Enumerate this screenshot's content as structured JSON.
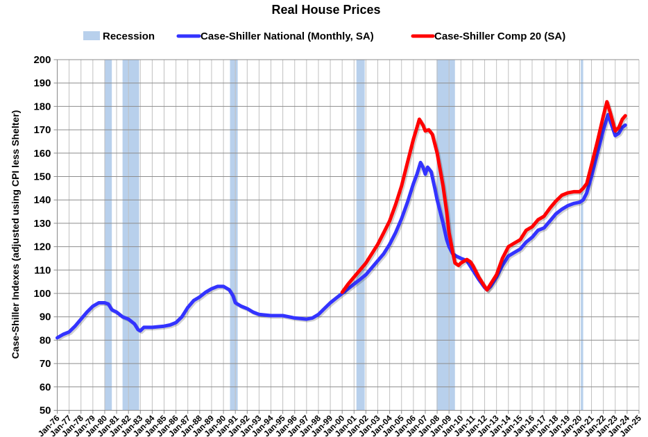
{
  "chart_data": {
    "type": "line",
    "title": "Real House Prices",
    "ylabel": "Case-Shiller Indexes (adjusted using CPI less Shelter)",
    "xlabel": "",
    "ylim": [
      50,
      200
    ],
    "yticks": [
      50,
      60,
      70,
      80,
      90,
      100,
      110,
      120,
      130,
      140,
      150,
      160,
      170,
      180,
      190,
      200
    ],
    "xlim": [
      1976,
      2025
    ],
    "xtick_labels": [
      "Jan-76",
      "Jan-77",
      "Jan-78",
      "Jan-79",
      "Jan-80",
      "Jan-81",
      "Jan-82",
      "Jan-83",
      "Jan-84",
      "Jan-85",
      "Jan-86",
      "Jan-87",
      "Jan-88",
      "Jan-89",
      "Jan-90",
      "Jan-91",
      "Jan-92",
      "Jan-93",
      "Jan-94",
      "Jan-95",
      "Jan-96",
      "Jan-97",
      "Jan-98",
      "Jan-99",
      "Jan-00",
      "Jan-01",
      "Jan-02",
      "Jan-03",
      "Jan-04",
      "Jan-05",
      "Jan-06",
      "Jan-07",
      "Jan-08",
      "Jan-09",
      "Jan-10",
      "Jan-11",
      "Jan-12",
      "Jan-13",
      "Jan-14",
      "Jan-15",
      "Jan-16",
      "Jan-17",
      "Jan-18",
      "Jan-19",
      "Jan-20",
      "Jan-21",
      "Jan-22",
      "Jan-23",
      "Jan-24",
      "Jan-25"
    ],
    "grid": true,
    "legend_position": "top",
    "legend": [
      "Recession",
      "Case-Shiller National (Monthly, SA)",
      "Case-Shiller Comp 20  (SA)"
    ],
    "recessions": [
      [
        1980.0,
        1980.6
      ],
      [
        1981.5,
        1982.9
      ],
      [
        1990.55,
        1991.2
      ],
      [
        2001.2,
        2001.9
      ],
      [
        2007.95,
        2009.5
      ],
      [
        2020.1,
        2020.3
      ]
    ],
    "recession_color": "#b8d0ec",
    "series": [
      {
        "name": "Case-Shiller National (Monthly, SA)",
        "color": "#3333ff",
        "x": [
          1976.0,
          1976.5,
          1977.0,
          1977.5,
          1978.0,
          1978.5,
          1979.0,
          1979.5,
          1980.0,
          1980.3,
          1980.6,
          1981.0,
          1981.5,
          1982.0,
          1982.5,
          1982.8,
          1983.0,
          1983.3,
          1984.0,
          1985.0,
          1985.5,
          1986.0,
          1986.5,
          1987.0,
          1987.5,
          1988.0,
          1988.5,
          1989.0,
          1989.5,
          1990.0,
          1990.5,
          1990.8,
          1991.0,
          1991.5,
          1992.0,
          1992.5,
          1993.0,
          1994.0,
          1995.0,
          1995.5,
          1996.0,
          1997.0,
          1997.5,
          1998.0,
          1998.5,
          1999.0,
          1999.5,
          2000.0,
          2000.5,
          2001.0,
          2001.5,
          2002.0,
          2002.5,
          2003.0,
          2003.5,
          2004.0,
          2004.5,
          2005.0,
          2005.5,
          2006.0,
          2006.3,
          2006.6,
          2006.8,
          2007.0,
          2007.2,
          2007.5,
          2007.8,
          2008.0,
          2008.5,
          2008.8,
          2009.0,
          2009.3,
          2009.6,
          2010.0,
          2010.5,
          2011.0,
          2011.5,
          2012.0,
          2012.2,
          2012.5,
          2013.0,
          2013.5,
          2014.0,
          2014.5,
          2015.0,
          2015.5,
          2016.0,
          2016.5,
          2017.0,
          2017.5,
          2018.0,
          2018.5,
          2019.0,
          2019.5,
          2020.0,
          2020.3,
          2020.6,
          2021.0,
          2021.5,
          2022.0,
          2022.4,
          2022.7,
          2023.0,
          2023.3,
          2023.6,
          2023.85
        ],
        "y": [
          81,
          82.5,
          83.5,
          86,
          89,
          92,
          94.5,
          96,
          96,
          95.5,
          93,
          92,
          90,
          89,
          87,
          84.5,
          84,
          85.5,
          85.5,
          86,
          86.5,
          87.5,
          90,
          94,
          97,
          98.5,
          100.5,
          102,
          103,
          103,
          101.5,
          99,
          96,
          94.5,
          93.5,
          92,
          91,
          90.5,
          90.5,
          90,
          89.5,
          89,
          89.5,
          91,
          93.5,
          96,
          98,
          100,
          102,
          104,
          106,
          108,
          111,
          114,
          117,
          121,
          126,
          132,
          139,
          147,
          151,
          156,
          154,
          151,
          154,
          152,
          145,
          140,
          130,
          123,
          120,
          117,
          116,
          115,
          114,
          110,
          106,
          102.5,
          101.5,
          103,
          107,
          112,
          116,
          117.5,
          119,
          122,
          124,
          127,
          128,
          131,
          134,
          136,
          137.5,
          138.5,
          139,
          140,
          143,
          150,
          160,
          170,
          176.5,
          172,
          167.5,
          168.5,
          171,
          172
        ]
      },
      {
        "name": "Case-Shiller Comp 20  (SA)",
        "color": "#ff0000",
        "x": [
          2000.0,
          2000.5,
          2001.0,
          2001.5,
          2002.0,
          2002.5,
          2003.0,
          2003.5,
          2004.0,
          2004.5,
          2005.0,
          2005.5,
          2006.0,
          2006.3,
          2006.5,
          2006.8,
          2007.0,
          2007.3,
          2007.6,
          2008.0,
          2008.5,
          2008.8,
          2009.0,
          2009.3,
          2009.5,
          2009.8,
          2010.0,
          2010.5,
          2010.8,
          2011.0,
          2011.5,
          2012.0,
          2012.2,
          2012.5,
          2013.0,
          2013.5,
          2014.0,
          2014.5,
          2015.0,
          2015.5,
          2016.0,
          2016.5,
          2017.0,
          2017.5,
          2018.0,
          2018.5,
          2019.0,
          2019.5,
          2020.0,
          2020.3,
          2020.6,
          2021.0,
          2021.5,
          2022.0,
          2022.3,
          2022.6,
          2023.0,
          2023.3,
          2023.6,
          2023.85
        ],
        "y": [
          100.5,
          104,
          107,
          110,
          113,
          117,
          121,
          126,
          131,
          138,
          146,
          156,
          166,
          171,
          174.5,
          172,
          169.5,
          170,
          168,
          160,
          146,
          135,
          126,
          118,
          113,
          112,
          113,
          114.5,
          113.5,
          112,
          107,
          103,
          101.5,
          104,
          108,
          115,
          120,
          121.5,
          123,
          127,
          128.5,
          131.5,
          133,
          136.5,
          139.5,
          142,
          143,
          143.5,
          143.5,
          145,
          147,
          155,
          165,
          176,
          182,
          177,
          169.5,
          171,
          174.5,
          176
        ]
      }
    ]
  }
}
